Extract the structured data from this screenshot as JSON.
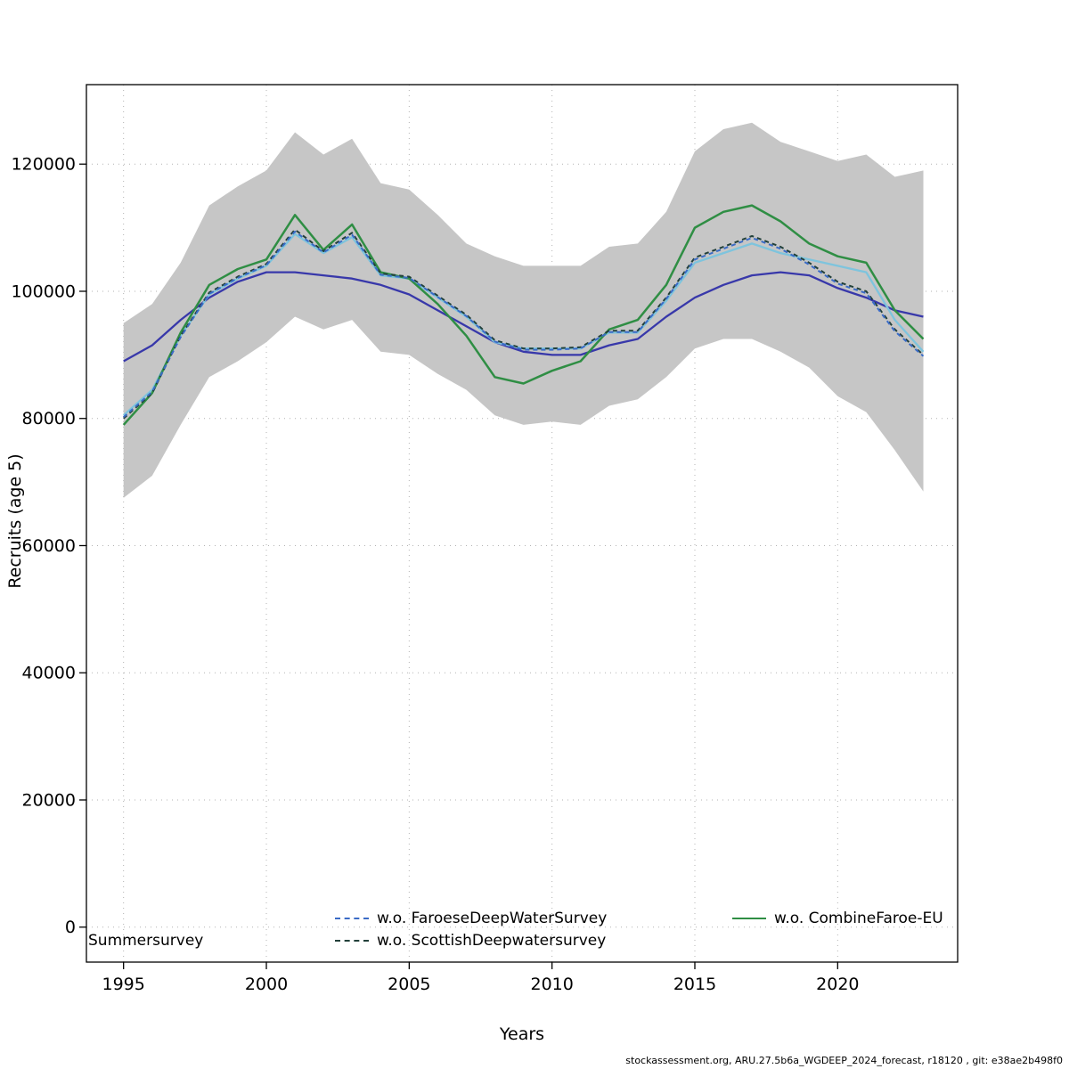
{
  "chart_data": {
    "type": "line",
    "title": "",
    "xlabel": "Years",
    "ylabel": "Recruits (age 5)",
    "xlim": [
      1993.7,
      2024.2
    ],
    "ylim": [
      -5500,
      132500
    ],
    "x_ticks": [
      1995,
      2000,
      2005,
      2010,
      2015,
      2020
    ],
    "y_ticks": [
      0,
      20000,
      40000,
      60000,
      80000,
      100000,
      120000
    ],
    "grid": "dotted",
    "grid_color": "#b3b3b3",
    "x": [
      1995,
      1996,
      1997,
      1998,
      1999,
      2000,
      2001,
      2002,
      2003,
      2004,
      2005,
      2006,
      2007,
      2008,
      2009,
      2010,
      2011,
      2012,
      2013,
      2014,
      2015,
      2016,
      2017,
      2018,
      2019,
      2020,
      2021,
      2022,
      2023
    ],
    "band": {
      "name": "confidence-band",
      "color": "#c6c6c6",
      "lower": [
        67500,
        71000,
        79000,
        86500,
        89000,
        92000,
        96000,
        94000,
        95500,
        90500,
        90000,
        87000,
        84500,
        80500,
        79000,
        79500,
        79000,
        82000,
        83000,
        86500,
        91000,
        92500,
        92500,
        90500,
        88000,
        83500,
        81000,
        75000,
        68500
      ],
      "upper": [
        95000,
        98000,
        104500,
        113500,
        116500,
        119000,
        125000,
        121500,
        124000,
        117000,
        116000,
        112000,
        107500,
        105500,
        104000,
        104000,
        104000,
        107000,
        107500,
        112500,
        122000,
        125500,
        126500,
        123500,
        122000,
        120500,
        121500,
        118000,
        119000
      ]
    },
    "series": [
      {
        "name": "Summersurvey",
        "color": "#3838aa",
        "style": "solid",
        "width": 2.3,
        "values": [
          89000,
          91500,
          95500,
          99000,
          101500,
          103000,
          103000,
          102500,
          102000,
          101000,
          99500,
          97000,
          94500,
          92000,
          90500,
          90000,
          90000,
          91500,
          92500,
          96000,
          99000,
          101000,
          102500,
          103000,
          102500,
          100500,
          99000,
          97000,
          96000
        ]
      },
      {
        "name": "unlabeled-lightblue",
        "color": "#7ec4dd",
        "style": "solid",
        "width": 2.3,
        "values": [
          80500,
          84500,
          93000,
          99500,
          102000,
          104000,
          109000,
          106000,
          108500,
          102500,
          102000,
          99000,
          96000,
          92000,
          91000,
          91000,
          91000,
          93500,
          93500,
          98500,
          104500,
          106000,
          107500,
          106000,
          105000,
          104000,
          103000,
          95500,
          90500
        ]
      },
      {
        "name": "w.o. CombineFaroe-EU",
        "color": "#2f8e44",
        "style": "solid",
        "width": 2.5,
        "values": [
          79000,
          84000,
          93500,
          101000,
          103500,
          105000,
          112000,
          106500,
          110500,
          103000,
          102000,
          98000,
          93000,
          86500,
          85500,
          87500,
          89000,
          94000,
          95500,
          101000,
          110000,
          112500,
          113500,
          111000,
          107500,
          105500,
          104500,
          97000,
          92500
        ]
      },
      {
        "name": "w.o. ScottishDeepwatersurvey",
        "color": "#22403a",
        "style": "dashed",
        "width": 2,
        "values": [
          80000,
          84000,
          93000,
          99800,
          102300,
          104300,
          109700,
          106300,
          109200,
          102800,
          102300,
          99300,
          96300,
          92300,
          91000,
          91000,
          91200,
          93800,
          93800,
          99000,
          105300,
          107000,
          108700,
          107000,
          104500,
          101500,
          100000,
          94000,
          90000
        ]
      },
      {
        "name": "w.o. FaroeseDeepWaterSurvey",
        "color": "#3a6bc6",
        "style": "dashed",
        "width": 2,
        "values": [
          80200,
          84200,
          92800,
          99600,
          102100,
          104100,
          109400,
          106100,
          108900,
          102600,
          102100,
          99100,
          96100,
          92100,
          90800,
          90800,
          91000,
          93600,
          93600,
          98800,
          105000,
          106700,
          108400,
          106700,
          104200,
          101200,
          99700,
          93700,
          89800
        ]
      }
    ],
    "legend": {
      "position": "bottom-inside",
      "items": [
        {
          "label": "Summersurvey",
          "style": "none",
          "color": "#3838aa"
        },
        {
          "label": "w.o. FaroeseDeepWaterSurvey",
          "style": "dashed",
          "color": "#3a6bc6"
        },
        {
          "label": "w.o. ScottishDeepwatersurvey",
          "style": "dashed",
          "color": "#22403a"
        },
        {
          "label": "w.o. CombineFaroe-EU",
          "style": "solid",
          "color": "#2f8e44"
        }
      ]
    }
  },
  "footer": {
    "text": "stockassessment.org, ARU.27.5b6a_WGDEEP_2024_forecast, r18120 , git: e38ae2b498f0"
  }
}
